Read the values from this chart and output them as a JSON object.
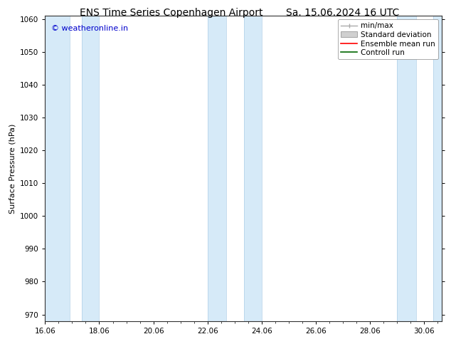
{
  "title_left": "ENS Time Series Copenhagen Airport",
  "title_right": "Sa. 15.06.2024 16 UTC",
  "ylabel": "Surface Pressure (hPa)",
  "ylim": [
    968,
    1061
  ],
  "yticks": [
    970,
    980,
    990,
    1000,
    1010,
    1020,
    1030,
    1040,
    1050,
    1060
  ],
  "total_days": 14.666,
  "xtick_labels": [
    "16.06",
    "18.06",
    "20.06",
    "22.06",
    "24.06",
    "26.06",
    "28.06",
    "30.06"
  ],
  "xtick_positions_days": [
    0,
    2,
    4,
    6,
    8,
    10,
    12,
    14
  ],
  "shade_bands": [
    {
      "start_day": 0.0,
      "end_day": 0.9
    },
    {
      "start_day": 1.35,
      "end_day": 2.0
    },
    {
      "start_day": 6.0,
      "end_day": 6.7
    },
    {
      "start_day": 7.35,
      "end_day": 8.0
    },
    {
      "start_day": 13.0,
      "end_day": 13.7
    },
    {
      "start_day": 14.35,
      "end_day": 14.666
    }
  ],
  "shade_color": "#d6eaf8",
  "vline_color": "#b0cfe8",
  "background_color": "#ffffff",
  "watermark": "© weatheronline.in",
  "watermark_color": "#0000cc",
  "legend_labels": [
    "min/max",
    "Standard deviation",
    "Ensemble mean run",
    "Controll run"
  ],
  "legend_colors_line": [
    "#aaaaaa",
    "#bbbbbb",
    "#ff0000",
    "#006600"
  ],
  "title_fontsize": 10,
  "ylabel_fontsize": 8,
  "tick_fontsize": 7.5,
  "legend_fontsize": 7.5,
  "watermark_fontsize": 8
}
